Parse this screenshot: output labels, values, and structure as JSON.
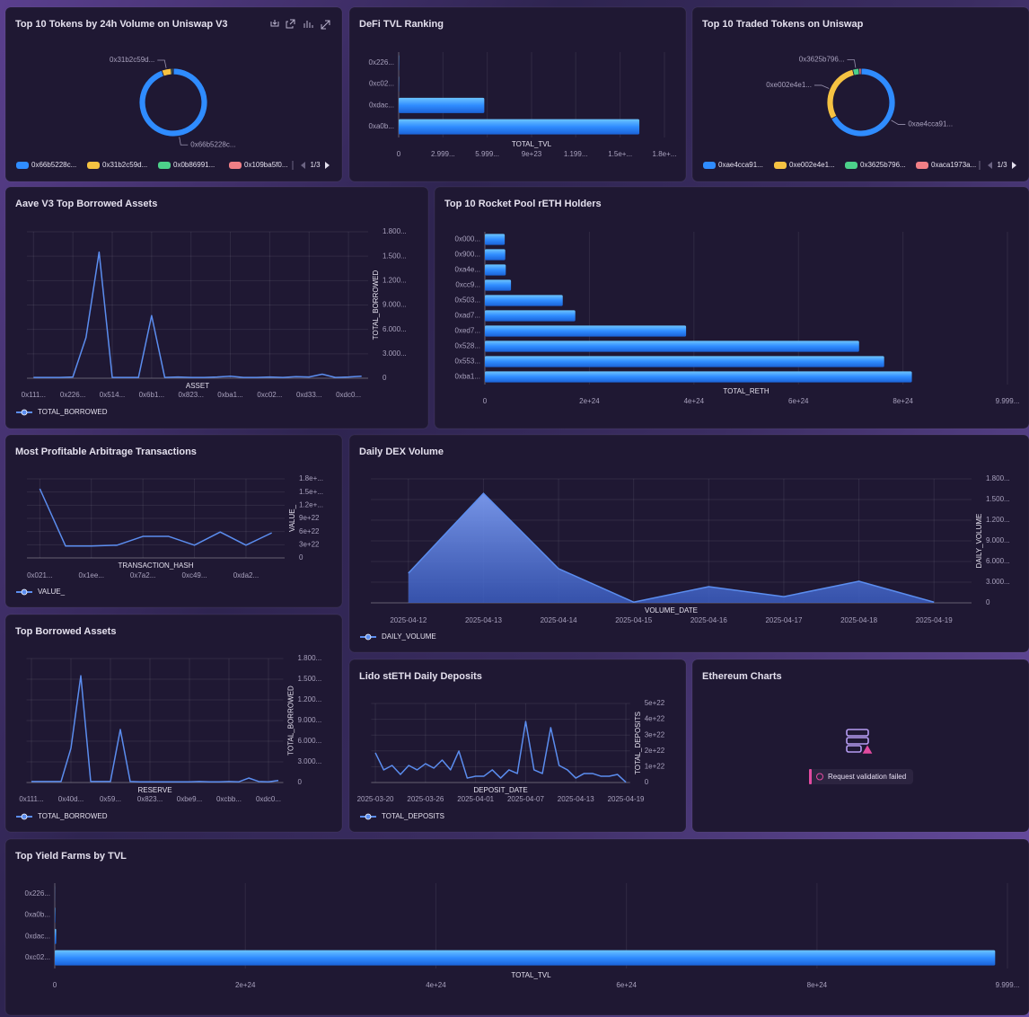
{
  "chart_data": [
    {
      "type": "donut",
      "title": "Top 10 Tokens by 24h Volume on Uniswap V3",
      "categories": [
        "0x66b5228c...",
        "0x31b2c59d...",
        "0x0b86991...",
        "0x109ba5f0..."
      ],
      "values": [
        94.5,
        4.5,
        0.6,
        0.4
      ],
      "colors": [
        "#2f8cff",
        "#f5c242",
        "#4cd08a",
        "#f07f86"
      ],
      "legend_page": "1/3"
    },
    {
      "type": "hbar",
      "title": "DeFi TVL Ranking",
      "categories": [
        "0x226...",
        "0xc02...",
        "0xdac...",
        "0xa0b..."
      ],
      "values": [
        2e+21,
        2e+21,
        5.8e+23,
        1.63e+24
      ],
      "color": "#2f8cff",
      "xlabel": "TOTAL_TVL",
      "xlim": [
        0,
        1.8e+24
      ],
      "xticks": [
        0,
        {
          "value": 2.999e+23,
          "label": "2.999..."
        },
        {
          "value": 5.999e+23,
          "label": "5.999..."
        },
        {
          "value": 9e+23,
          "label": "9e+23"
        },
        {
          "value": 1.199e+24,
          "label": "1.199..."
        },
        {
          "value": 1.5e+24,
          "label": "1.5e+..."
        },
        {
          "value": 1.8e+24,
          "label": "1.8e+..."
        }
      ]
    },
    {
      "type": "donut",
      "title": "Top 10 Traded Tokens on Uniswap",
      "categories": [
        "0xae4cca91...",
        "0xe002e4e1...",
        "0x3625b796...",
        "0xaca1973a..."
      ],
      "values": [
        67,
        29,
        3,
        1
      ],
      "colors": [
        "#2f8cff",
        "#f5c242",
        "#4cd08a",
        "#f07f86"
      ],
      "legend_page": "1/3"
    },
    {
      "type": "line",
      "title": "Aave V3 Top Borrowed Assets",
      "xlabel": "ASSET",
      "ylabel": "TOTAL_BORROWED",
      "categories": [
        "0x111...",
        null,
        null,
        "0x226...",
        null,
        null,
        "0x514...",
        null,
        null,
        "0x6b1...",
        null,
        null,
        "0x823...",
        null,
        null,
        "0xba1...",
        null,
        null,
        "0xc02...",
        null,
        null,
        "0xd33...",
        null,
        null,
        "0xdc0...",
        null
      ],
      "series": [
        {
          "name": "TOTAL_BORROWED",
          "color": "#5b8def",
          "values": [
            100,
            100,
            100,
            150,
            5000,
            15500,
            100,
            100,
            100,
            7700,
            100,
            150,
            100,
            100,
            150,
            250,
            100,
            100,
            150,
            100,
            200,
            150,
            500,
            100,
            150,
            250
          ]
        }
      ],
      "ylim": [
        0,
        18000
      ],
      "yticks": [
        0,
        {
          "value": 3000,
          "label": "3.000..."
        },
        {
          "value": 6000,
          "label": "6.000..."
        },
        {
          "value": 9000,
          "label": "9.000..."
        },
        {
          "value": 12000,
          "label": "1.200..."
        },
        {
          "value": 15000,
          "label": "1.500..."
        },
        {
          "value": 18000,
          "label": "1.800..."
        }
      ]
    },
    {
      "type": "hbar",
      "title": "Top 10 Rocket Pool rETH Holders",
      "categories": [
        "0x000...",
        "0x900...",
        "0xa4e...",
        "0xcc9...",
        "0x503...",
        "0xad7...",
        "0xed7...",
        "0x528...",
        "0x553...",
        "0xba1..."
      ],
      "values": [
        3.8e+23,
        3.9e+23,
        4e+23,
        5e+23,
        1.49e+24,
        1.73e+24,
        3.85e+24,
        7.16e+24,
        7.64e+24,
        8.17e+24
      ],
      "color": "#2f8cff",
      "xlabel": "TOTAL_RETH",
      "xlim": [
        0,
        9.999e+24
      ],
      "xticks": [
        0,
        {
          "value": 2e+24,
          "label": "2e+24"
        },
        {
          "value": 4e+24,
          "label": "4e+24"
        },
        {
          "value": 6e+24,
          "label": "6e+24"
        },
        {
          "value": 8e+24,
          "label": "8e+24"
        },
        {
          "value": 9.999e+24,
          "label": "9.999..."
        }
      ]
    },
    {
      "type": "line",
      "title": "Most Profitable Arbitrage Transactions",
      "xlabel": "TRANSACTION_HASH",
      "ylabel": "VALUE_",
      "categories": [
        "0x021...",
        null,
        "0x1ee...",
        null,
        "0x7a2...",
        null,
        "0xc49...",
        null,
        "0xda2...",
        null
      ],
      "series": [
        {
          "name": "VALUE_",
          "color": "#5b8def",
          "values": [
            1.575e+23,
            2.7e+22,
            2.7e+22,
            2.9e+22,
            4.9e+22,
            4.9e+22,
            2.9e+22,
            5.9e+22,
            2.9e+22,
            5.7e+22
          ]
        }
      ],
      "ylim": [
        0,
        1.8e+23
      ],
      "yticks": [
        0,
        {
          "value": 3e+22,
          "label": "3e+22"
        },
        {
          "value": 6e+22,
          "label": "6e+22"
        },
        {
          "value": 9e+22,
          "label": "9e+22"
        },
        {
          "value": 1.2e+23,
          "label": "1.2e+..."
        },
        {
          "value": 1.5e+23,
          "label": "1.5e+..."
        },
        {
          "value": 1.8e+23,
          "label": "1.8e+..."
        }
      ]
    },
    {
      "type": "area",
      "title": "Daily DEX Volume",
      "xlabel": "VOLUME_DATE",
      "ylabel": "DAILY_VOLUME",
      "categories": [
        "2025-04-12",
        "2025-04-13",
        "2025-04-14",
        "2025-04-15",
        "2025-04-16",
        "2025-04-17",
        "2025-04-18",
        "2025-04-19"
      ],
      "series": [
        {
          "name": "DAILY_VOLUME",
          "color": "#5b8def",
          "values": [
            4300,
            15900,
            4960,
            100,
            2350,
            900,
            3130,
            100
          ]
        }
      ],
      "ylim": [
        0,
        18000
      ],
      "yticks": [
        0,
        {
          "value": 3000,
          "label": "3.000..."
        },
        {
          "value": 6000,
          "label": "6.000..."
        },
        {
          "value": 9000,
          "label": "9.000..."
        },
        {
          "value": 12000,
          "label": "1.200..."
        },
        {
          "value": 15000,
          "label": "1.500..."
        },
        {
          "value": 18000,
          "label": "1.800..."
        }
      ]
    },
    {
      "type": "line",
      "title": "Top Borrowed Assets",
      "xlabel": "RESERVE",
      "ylabel": "TOTAL_BORROWED",
      "categories": [
        "0x111...",
        null,
        null,
        null,
        "0x40d...",
        null,
        null,
        null,
        "0x59...",
        null,
        null,
        null,
        "0x823...",
        null,
        null,
        null,
        "0xbe9...",
        null,
        null,
        null,
        "0xcbb...",
        null,
        null,
        null,
        "0xdc0...",
        null
      ],
      "series": [
        {
          "name": "TOTAL_BORROWED",
          "color": "#5b8def",
          "values": [
            150,
            150,
            150,
            150,
            4960,
            15500,
            150,
            150,
            150,
            7700,
            150,
            100,
            100,
            100,
            100,
            100,
            100,
            150,
            100,
            100,
            150,
            100,
            650,
            150,
            100,
            300
          ]
        }
      ],
      "ylim": [
        0,
        18000
      ],
      "yticks": [
        0,
        {
          "value": 3000,
          "label": "3.000..."
        },
        {
          "value": 6000,
          "label": "6.000..."
        },
        {
          "value": 9000,
          "label": "9.000..."
        },
        {
          "value": 12000,
          "label": "1.200..."
        },
        {
          "value": 15000,
          "label": "1.500..."
        },
        {
          "value": 18000,
          "label": "1.800..."
        }
      ]
    },
    {
      "type": "line",
      "title": "Lido stETH Daily Deposits",
      "xlabel": "DEPOSIT_DATE",
      "ylabel": "TOTAL_DEPOSITS",
      "categories": [
        "2025-03-20",
        null,
        null,
        null,
        null,
        null,
        "2025-03-26",
        null,
        null,
        null,
        null,
        null,
        "2025-04-01",
        null,
        null,
        null,
        null,
        null,
        "2025-04-07",
        null,
        null,
        null,
        null,
        null,
        "2025-04-13",
        null,
        null,
        null,
        null,
        null,
        "2025-04-19"
      ],
      "series": [
        {
          "name": "TOTAL_DEPOSITS",
          "color": "#5b8def",
          "values": [
            1.88e+22,
            8e+21,
            1.08e+22,
            5.1e+21,
            1.08e+22,
            8e+21,
            1.19e+22,
            9.1e+21,
            1.42e+22,
            8e+21,
            1.99e+22,
            2.8e+21,
            4e+21,
            4e+21,
            8e+21,
            2.8e+21,
            8e+21,
            5.7e+21,
            3.86e+22,
            8e+21,
            5.7e+21,
            3.47e+22,
            1.08e+22,
            8e+21,
            2.8e+21,
            5.7e+21,
            5.7e+21,
            4e+21,
            4e+21,
            5.1e+21,
            2e+20
          ]
        }
      ],
      "ylim": [
        0,
        5e+22
      ],
      "yticks": [
        0,
        {
          "value": 1e+22,
          "label": "1e+22"
        },
        {
          "value": 2e+22,
          "label": "2e+22"
        },
        {
          "value": 3e+22,
          "label": "3e+22"
        },
        {
          "value": 4e+22,
          "label": "4e+22"
        },
        {
          "value": 5e+22,
          "label": "5e+22"
        }
      ]
    },
    {
      "type": "hbar",
      "title": "Top Yield Farms by TVL",
      "categories": [
        "0x226...",
        "0xa0b...",
        "0xdac...",
        "0xc02..."
      ],
      "values": [
        1e+21,
        5e+21,
        1.5e+22,
        9.87e+24
      ],
      "color": "#2f8cff",
      "xlabel": "TOTAL_TVL",
      "xlim": [
        0,
        9.999e+24
      ],
      "xticks": [
        0,
        {
          "value": 2e+24,
          "label": "2e+24"
        },
        {
          "value": 4e+24,
          "label": "4e+24"
        },
        {
          "value": 6e+24,
          "label": "6e+24"
        },
        {
          "value": 8e+24,
          "label": "8e+24"
        },
        {
          "value": 9.999e+24,
          "label": "9.999..."
        }
      ]
    }
  ],
  "ethereum_panel": {
    "title": "Ethereum Charts",
    "error": "Request validation failed"
  }
}
